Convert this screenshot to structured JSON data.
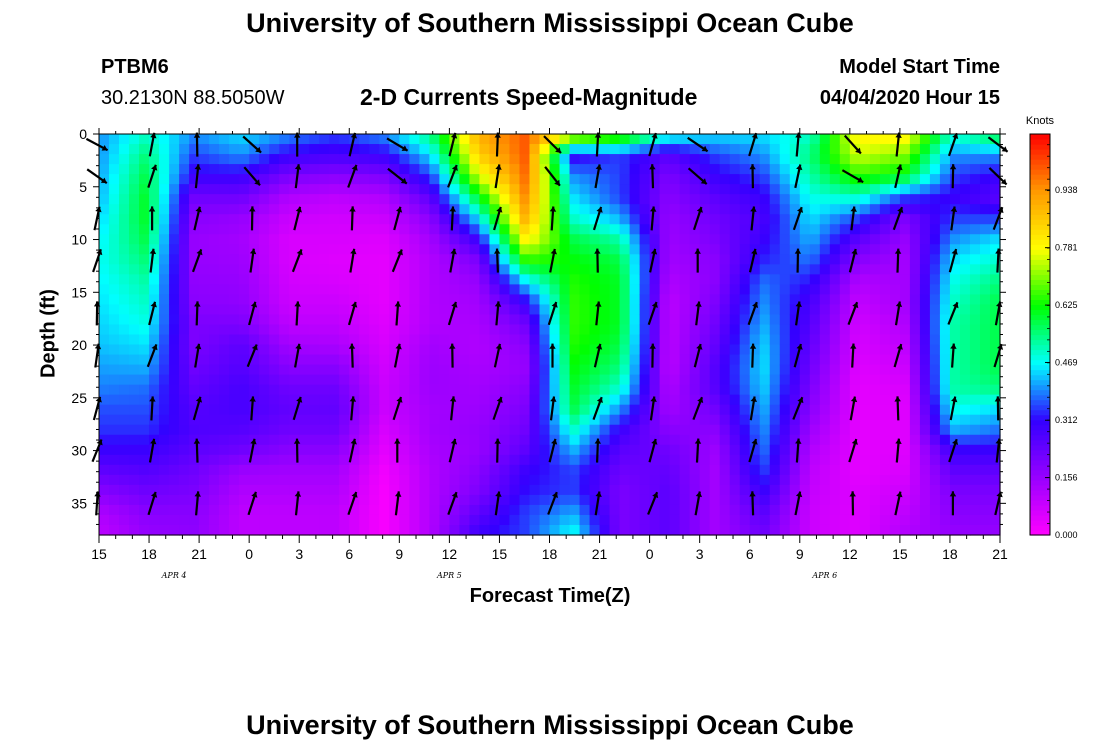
{
  "header": {
    "title": "University of Southern Mississippi Ocean Cube",
    "station_id": "PTBM6",
    "station_coords": "30.2130N 88.5050W",
    "subtitle": "2-D Currents Speed-Magnitude",
    "model_start_label": "Model Start Time",
    "model_start_value": "04/04/2020 Hour 15"
  },
  "footer": {
    "title": "University of Southern Mississippi Ocean Cube"
  },
  "chart_data": {
    "type": "heatmap",
    "xlabel": "Forecast Time(Z)",
    "ylabel": "Depth (ft)",
    "x_tick_labels": [
      "15",
      "18",
      "21",
      "0",
      "3",
      "6",
      "9",
      "12",
      "15",
      "18",
      "21",
      "0",
      "3",
      "6",
      "9",
      "12",
      "15",
      "18",
      "21"
    ],
    "x_hours": [
      0,
      3,
      6,
      9,
      12,
      15,
      18,
      21,
      24,
      27,
      30,
      33,
      36,
      39,
      42,
      45,
      48,
      51,
      54
    ],
    "x_range_hours": [
      0,
      54
    ],
    "date_labels": [
      {
        "text": "APR 4",
        "hour": 4.5
      },
      {
        "text": "APR 5",
        "hour": 21
      },
      {
        "text": "APR 6",
        "hour": 43.5
      }
    ],
    "y_ticks": [
      0,
      5,
      10,
      15,
      20,
      25,
      30,
      35
    ],
    "y_range_ft": [
      0,
      38
    ],
    "y_inverted": true,
    "colorbar": {
      "unit": "Knots",
      "tick_labels": [
        "0.000",
        "0.156",
        "0.312",
        "0.469",
        "0.625",
        "0.781",
        "0.938"
      ],
      "tick_values": [
        0.0,
        0.156,
        0.312,
        0.469,
        0.625,
        0.781,
        0.938
      ],
      "range": [
        0,
        1.09
      ],
      "colors": [
        "#ff00ff",
        "#9900ff",
        "#3300ff",
        "#00ffff",
        "#00ff00",
        "#ffff00",
        "#ff9900",
        "#ff0000"
      ]
    },
    "speed_profiles_knots": [
      [
        0.4,
        0.4,
        0.41,
        0.42,
        0.44,
        0.46,
        0.47,
        0.46,
        0.45,
        0.44,
        0.43,
        0.41,
        0.39,
        0.36,
        0.34,
        0.3,
        0.24,
        0.18,
        0.12,
        0.1
      ],
      [
        0.5,
        0.55,
        0.58,
        0.6,
        0.6,
        0.58,
        0.55,
        0.52,
        0.5,
        0.48,
        0.45,
        0.42,
        0.38,
        0.36,
        0.34,
        0.3,
        0.26,
        0.22,
        0.18,
        0.16
      ],
      [
        0.4,
        0.35,
        0.3,
        0.22,
        0.18,
        0.16,
        0.16,
        0.17,
        0.18,
        0.2,
        0.2,
        0.22,
        0.24,
        0.26,
        0.27,
        0.25,
        0.22,
        0.2,
        0.18,
        0.17
      ],
      [
        0.45,
        0.4,
        0.3,
        0.22,
        0.16,
        0.14,
        0.15,
        0.16,
        0.17,
        0.2,
        0.25,
        0.26,
        0.28,
        0.28,
        0.26,
        0.22,
        0.15,
        0.12,
        0.1,
        0.1
      ],
      [
        0.4,
        0.3,
        0.2,
        0.12,
        0.08,
        0.06,
        0.06,
        0.07,
        0.08,
        0.1,
        0.14,
        0.18,
        0.22,
        0.24,
        0.22,
        0.18,
        0.14,
        0.12,
        0.1,
        0.1
      ],
      [
        0.35,
        0.28,
        0.18,
        0.1,
        0.07,
        0.06,
        0.05,
        0.06,
        0.08,
        0.1,
        0.13,
        0.18,
        0.22,
        0.24,
        0.22,
        0.18,
        0.14,
        0.12,
        0.1,
        0.1
      ],
      [
        0.4,
        0.3,
        0.2,
        0.12,
        0.08,
        0.05,
        0.04,
        0.04,
        0.04,
        0.05,
        0.06,
        0.07,
        0.08,
        0.08,
        0.06,
        0.04,
        0.02,
        0.01,
        0.01,
        0.01
      ],
      [
        0.55,
        0.45,
        0.35,
        0.25,
        0.18,
        0.14,
        0.12,
        0.12,
        0.12,
        0.12,
        0.14,
        0.15,
        0.15,
        0.14,
        0.14,
        0.13,
        0.12,
        0.12,
        0.12,
        0.12
      ],
      [
        0.9,
        0.85,
        0.75,
        0.6,
        0.45,
        0.3,
        0.2,
        0.16,
        0.14,
        0.13,
        0.12,
        0.13,
        0.14,
        0.15,
        0.16,
        0.16,
        0.18,
        0.2,
        0.25,
        0.3
      ],
      [
        1.0,
        1.0,
        0.98,
        0.95,
        0.9,
        0.8,
        0.65,
        0.45,
        0.3,
        0.22,
        0.18,
        0.16,
        0.18,
        0.2,
        0.22,
        0.25,
        0.3,
        0.32,
        0.35,
        0.35
      ],
      [
        0.8,
        0.3,
        0.4,
        0.45,
        0.5,
        0.58,
        0.62,
        0.64,
        0.65,
        0.65,
        0.64,
        0.62,
        0.6,
        0.58,
        0.5,
        0.42,
        0.35,
        0.35,
        0.42,
        0.48
      ],
      [
        0.7,
        0.35,
        0.35,
        0.35,
        0.42,
        0.52,
        0.58,
        0.6,
        0.6,
        0.6,
        0.58,
        0.55,
        0.5,
        0.4,
        0.3,
        0.25,
        0.22,
        0.2,
        0.2,
        0.2
      ],
      [
        0.5,
        0.25,
        0.2,
        0.18,
        0.16,
        0.15,
        0.14,
        0.12,
        0.1,
        0.1,
        0.1,
        0.1,
        0.12,
        0.14,
        0.18,
        0.22,
        0.24,
        0.25,
        0.25,
        0.25
      ],
      [
        0.45,
        0.35,
        0.3,
        0.25,
        0.22,
        0.2,
        0.18,
        0.18,
        0.2,
        0.22,
        0.24,
        0.26,
        0.26,
        0.22,
        0.18,
        0.15,
        0.14,
        0.14,
        0.14,
        0.14
      ],
      [
        0.45,
        0.4,
        0.35,
        0.3,
        0.28,
        0.3,
        0.33,
        0.38,
        0.4,
        0.42,
        0.44,
        0.45,
        0.44,
        0.42,
        0.4,
        0.38,
        0.35,
        0.3,
        0.25,
        0.22
      ],
      [
        0.5,
        0.55,
        0.52,
        0.48,
        0.45,
        0.42,
        0.38,
        0.32,
        0.28,
        0.26,
        0.24,
        0.22,
        0.2,
        0.18,
        0.15,
        0.12,
        0.1,
        0.09,
        0.08,
        0.08
      ],
      [
        0.8,
        0.75,
        0.65,
        0.5,
        0.35,
        0.25,
        0.18,
        0.12,
        0.09,
        0.07,
        0.06,
        0.05,
        0.04,
        0.04,
        0.04,
        0.04,
        0.04,
        0.05,
        0.05,
        0.05
      ],
      [
        0.8,
        0.7,
        0.6,
        0.35,
        0.2,
        0.16,
        0.14,
        0.14,
        0.14,
        0.12,
        0.1,
        0.08,
        0.06,
        0.05,
        0.05,
        0.05,
        0.06,
        0.08,
        0.1,
        0.12
      ],
      [
        0.5,
        0.4,
        0.35,
        0.3,
        0.35,
        0.4,
        0.45,
        0.48,
        0.5,
        0.52,
        0.52,
        0.52,
        0.52,
        0.48,
        0.42,
        0.3,
        0.24,
        0.2,
        0.18,
        0.16
      ],
      [
        0.6,
        0.4,
        0.3,
        0.25,
        0.35,
        0.45,
        0.5,
        0.55,
        0.58,
        0.58,
        0.58,
        0.58,
        0.55,
        0.45,
        0.38,
        0.3,
        0.24,
        0.2,
        0.18,
        0.16
      ]
    ]
  }
}
